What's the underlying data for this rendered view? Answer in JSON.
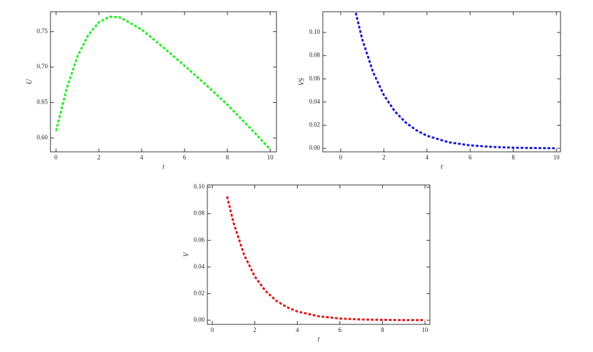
{
  "chart_data": [
    {
      "type": "line",
      "x_label": "t",
      "y_label": "U",
      "series": [
        {
          "color": "#22ee22",
          "x": [
            0,
            0.5,
            1,
            1.5,
            2,
            2.5,
            3,
            4,
            5,
            6,
            7,
            8,
            9,
            10
          ],
          "values": [
            0.61,
            0.67,
            0.715,
            0.745,
            0.763,
            0.771,
            0.77,
            0.753,
            0.728,
            0.702,
            0.675,
            0.647,
            0.616,
            0.584
          ]
        }
      ],
      "xlim": [
        -0.26,
        10.29
      ],
      "ylim": [
        0.5805,
        0.778
      ],
      "xticks": [
        0,
        2,
        4,
        6,
        8,
        10
      ],
      "yticks": [
        {
          "value": 0.6,
          "label": "0.60"
        },
        {
          "value": 0.65,
          "label": "0.65"
        },
        {
          "value": 0.7,
          "label": "0.70"
        },
        {
          "value": 0.75,
          "label": "0.75"
        }
      ]
    },
    {
      "type": "line",
      "x_label": "t",
      "y_label": "VS",
      "series": [
        {
          "color": "#1a1acc",
          "x": [
            0.7,
            1,
            1.5,
            2,
            2.5,
            3,
            3.5,
            4,
            5,
            6,
            7,
            8,
            9,
            10
          ],
          "values": [
            0.117,
            0.0942,
            0.0659,
            0.0461,
            0.0322,
            0.0225,
            0.0157,
            0.0109,
            0.0053,
            0.0026,
            0.0013,
            0.0006,
            0.0003,
            0.0001
          ]
        }
      ],
      "xlim": [
        -0.83,
        10.19
      ],
      "ylim": [
        -0.003,
        0.1179
      ],
      "xticks": [
        0,
        2,
        4,
        6,
        8,
        10
      ],
      "yticks": [
        {
          "value": 0,
          "label": "0.00"
        },
        {
          "value": 0.02,
          "label": "0.02"
        },
        {
          "value": 0.04,
          "label": "0.04"
        },
        {
          "value": 0.06,
          "label": "0.06"
        },
        {
          "value": 0.08,
          "label": "0.08"
        },
        {
          "value": 0.1,
          "label": "0.10"
        }
      ]
    },
    {
      "type": "line",
      "x_label": "t",
      "y_label": "V",
      "series": [
        {
          "color": "#dd1a1a",
          "x": [
            0.7,
            1,
            1.5,
            2,
            2.5,
            3,
            3.5,
            4,
            5,
            6,
            7,
            8,
            9,
            10
          ],
          "values": [
            0.093,
            0.0732,
            0.0491,
            0.0329,
            0.0221,
            0.0148,
            0.0099,
            0.0066,
            0.003,
            0.0013,
            0.0006,
            0.0003,
            0.0001,
            0.0001
          ]
        }
      ],
      "xlim": [
        -0.23,
        10.23
      ],
      "ylim": [
        -0.0031,
        0.1016
      ],
      "xticks": [
        0,
        2,
        4,
        6,
        8,
        10
      ],
      "yticks": [
        {
          "value": 0,
          "label": "0.00"
        },
        {
          "value": 0.02,
          "label": "0.02"
        },
        {
          "value": 0.04,
          "label": "0.04"
        },
        {
          "value": 0.06,
          "label": "0.06"
        },
        {
          "value": 0.08,
          "label": "0.08"
        },
        {
          "value": 0.1,
          "label": "0.10"
        }
      ]
    }
  ]
}
